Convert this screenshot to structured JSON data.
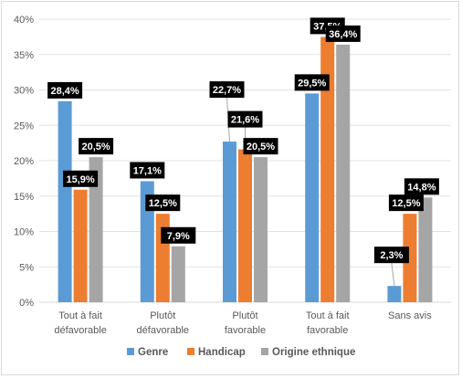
{
  "chart_data": {
    "type": "bar",
    "categories": [
      [
        "Tout à fait",
        "défavorable"
      ],
      [
        "Plutôt",
        "défavorable"
      ],
      [
        "Plutôt",
        "favorable"
      ],
      [
        "Tout à fait",
        "favorable"
      ],
      [
        "Sans avis"
      ]
    ],
    "series": [
      {
        "name": "Genre",
        "color": "#5b9bd5",
        "values": [
          28.4,
          17.1,
          22.7,
          29.5,
          2.3
        ],
        "labels": [
          "28,4%",
          "17,1%",
          "22,7%",
          "29,5%",
          "2,3%"
        ]
      },
      {
        "name": "Handicap",
        "color": "#ed7d31",
        "values": [
          15.9,
          12.5,
          21.6,
          37.5,
          12.5
        ],
        "labels": [
          "15,9%",
          "12,5%",
          "21,6%",
          "37,5%",
          "12,5%"
        ]
      },
      {
        "name": "Origine ethnique",
        "color": "#a5a5a5",
        "values": [
          20.5,
          7.9,
          20.5,
          36.4,
          14.8
        ],
        "labels": [
          "20,5%",
          "7,9%",
          "20,5%",
          "36,4%",
          "14,8%"
        ]
      }
    ],
    "y_ticks": [
      "0%",
      "5%",
      "10%",
      "15%",
      "20%",
      "25%",
      "30%",
      "35%",
      "40%"
    ],
    "ylim": [
      0,
      40
    ],
    "grid": true,
    "legend_position": "bottom",
    "data_label_style": "white bold text on black box"
  }
}
